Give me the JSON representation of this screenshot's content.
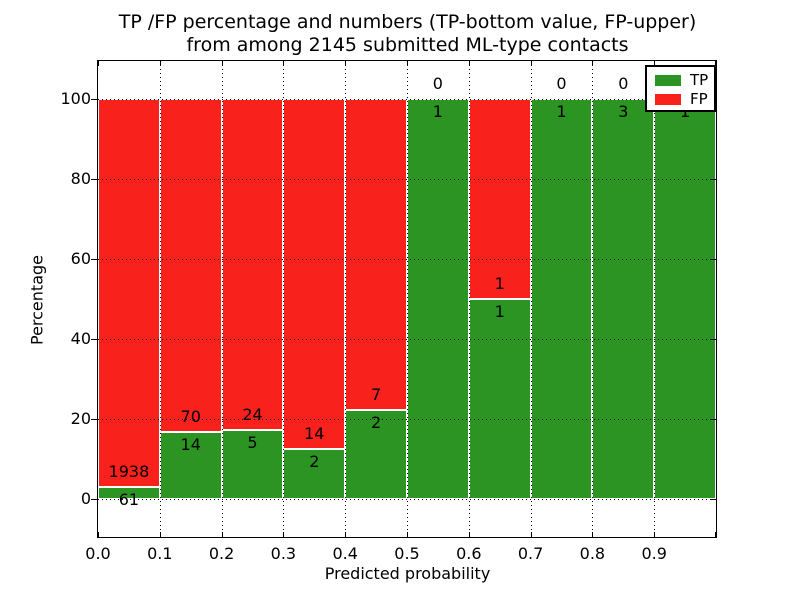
{
  "title": {
    "line1": "TP /FP percentage and numbers (TP-bottom value, FP-upper)",
    "line2": "from among 2145 submitted ML-type contacts"
  },
  "axis": {
    "xlabel": "Predicted probability",
    "ylabel": "Percentage"
  },
  "legend": {
    "items": [
      {
        "label": "TP",
        "color": "#2b9422"
      },
      {
        "label": "FP",
        "color": "#f8211c"
      }
    ]
  },
  "colors": {
    "tp": "#2b9422",
    "fp": "#f8211c",
    "grid": "#000000",
    "frame": "#000000",
    "background": "#ffffff"
  },
  "chart_data": {
    "type": "bar",
    "stacked": true,
    "orientation": "vertical",
    "title": "TP /FP percentage and numbers (TP-bottom value, FP-upper) from among 2145 submitted ML-type contacts",
    "xlabel": "Predicted probability",
    "ylabel": "Percentage",
    "x_tick_labels": [
      "0.0",
      "0.1",
      "0.2",
      "0.3",
      "0.4",
      "0.5",
      "0.6",
      "0.7",
      "0.8",
      "0.9"
    ],
    "y_ticks": [
      0,
      20,
      40,
      60,
      80,
      100
    ],
    "xlim": [
      0.0,
      1.0
    ],
    "ylim": [
      -10,
      110
    ],
    "grid": "dotted",
    "legend_position": "upper right",
    "bin_width": 0.1,
    "total_contacts": 2145,
    "series": [
      {
        "name": "TP",
        "position": "bottom"
      },
      {
        "name": "FP",
        "position": "top"
      }
    ],
    "bins": [
      {
        "x_range": [
          0.0,
          0.1
        ],
        "tp": 61,
        "fp": 1938,
        "tp_pct": 3.05,
        "fp_pct": 96.95,
        "fp_label_visible": true
      },
      {
        "x_range": [
          0.1,
          0.2
        ],
        "tp": 14,
        "fp": 70,
        "tp_pct": 16.67,
        "fp_pct": 83.33,
        "fp_label_visible": true
      },
      {
        "x_range": [
          0.2,
          0.3
        ],
        "tp": 5,
        "fp": 24,
        "tp_pct": 17.24,
        "fp_pct": 82.76,
        "fp_label_visible": true
      },
      {
        "x_range": [
          0.3,
          0.4
        ],
        "tp": 2,
        "fp": 14,
        "tp_pct": 12.5,
        "fp_pct": 87.5,
        "fp_label_visible": true
      },
      {
        "x_range": [
          0.4,
          0.5
        ],
        "tp": 2,
        "fp": 7,
        "tp_pct": 22.22,
        "fp_pct": 77.78,
        "fp_label_visible": true
      },
      {
        "x_range": [
          0.5,
          0.6
        ],
        "tp": 1,
        "fp": 0,
        "tp_pct": 100,
        "fp_pct": 0,
        "fp_label_visible": true
      },
      {
        "x_range": [
          0.6,
          0.7
        ],
        "tp": 1,
        "fp": 1,
        "tp_pct": 50,
        "fp_pct": 50,
        "fp_label_visible": true
      },
      {
        "x_range": [
          0.7,
          0.8
        ],
        "tp": 1,
        "fp": 0,
        "tp_pct": 100,
        "fp_pct": 0,
        "fp_label_visible": true
      },
      {
        "x_range": [
          0.8,
          0.9
        ],
        "tp": 3,
        "fp": 0,
        "tp_pct": 100,
        "fp_pct": 0,
        "fp_label_visible": true
      },
      {
        "x_range": [
          0.9,
          1.0
        ],
        "tp": 1,
        "fp": 0,
        "tp_pct": 100,
        "fp_pct": 0,
        "fp_label_visible": false
      }
    ]
  }
}
